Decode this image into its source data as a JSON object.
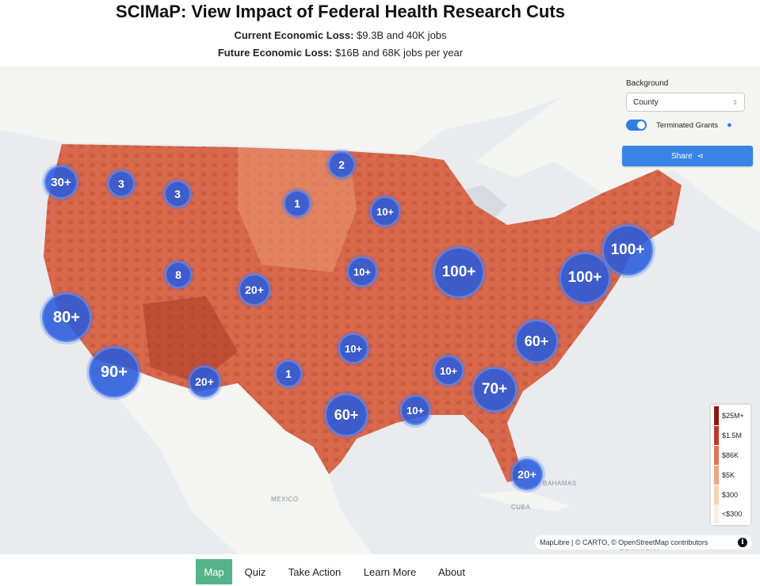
{
  "header": {
    "title": "SCIMaP: View Impact of Federal Health Research Cuts",
    "current_label": "Current Economic Loss:",
    "current_value": "$9.3B and 40K jobs",
    "future_label": "Future Economic Loss:",
    "future_value": "$16B and 68K jobs per year"
  },
  "controls": {
    "background_label": "Background",
    "background_value": "County",
    "toggle_label": "Terminated Grants",
    "toggle_on": true,
    "share_label": "Share"
  },
  "clusters": [
    "30+",
    "3",
    "3",
    "2",
    "1",
    "10+",
    "8",
    "20+",
    "10+",
    "100+",
    "100+",
    "100+",
    "80+",
    "90+",
    "20+",
    "1",
    "10+",
    "10+",
    "60+",
    "60+",
    "10+",
    "70+",
    "20+"
  ],
  "legend": {
    "items": [
      {
        "label": "$25M+",
        "color": "#8e1b12"
      },
      {
        "label": "$1.5M",
        "color": "#c0392b"
      },
      {
        "label": "$86K",
        "color": "#e0765a"
      },
      {
        "label": "$5K",
        "color": "#f0a77f"
      },
      {
        "label": "$300",
        "color": "#f6d2b4"
      },
      {
        "label": "<$300",
        "color": "#fbefe4"
      }
    ]
  },
  "geo_labels": {
    "mexico": "MEXICO",
    "bahamas": "BAHAMAS",
    "cuba": "CUBA",
    "dominican": "DOMINICAN"
  },
  "attribution": "MapLibre | © CARTO, © OpenStreetMap contributors",
  "nav": {
    "items": [
      "Map",
      "Quiz",
      "Take Action",
      "Learn More",
      "About"
    ],
    "active": "Map"
  },
  "colors": {
    "accent": "#3a84e6",
    "cluster": "#2a5adc",
    "nav_active": "#57b38a"
  }
}
